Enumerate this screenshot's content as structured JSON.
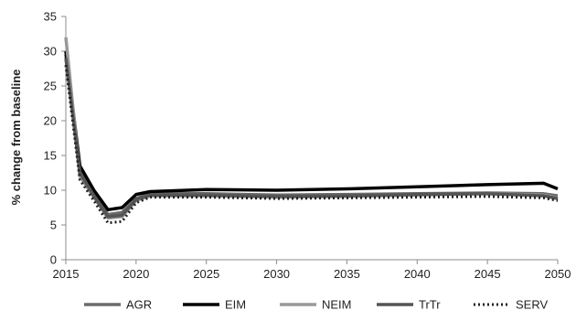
{
  "chart_data": {
    "type": "line",
    "title": "",
    "xlabel": "",
    "ylabel": "% change from baseline",
    "xlim": [
      2015,
      2050
    ],
    "ylim": [
      0,
      35
    ],
    "x_ticks": [
      2015,
      2020,
      2025,
      2030,
      2035,
      2040,
      2045,
      2050
    ],
    "x_tick_labels": [
      "2015",
      "2020",
      "2025",
      "2030",
      "2035",
      "2040",
      "2045",
      "2050"
    ],
    "y_ticks": [
      0,
      5,
      10,
      15,
      20,
      25,
      30,
      35
    ],
    "y_tick_labels": [
      "0",
      "5",
      "10",
      "15",
      "20",
      "25",
      "30",
      "35"
    ],
    "grid": false,
    "legend_position": "bottom",
    "series": [
      {
        "name": "AGR",
        "color": "#6b6b6b",
        "style": "solid",
        "points": [
          [
            2015,
            29.5
          ],
          [
            2016,
            13.0
          ],
          [
            2017,
            9.5
          ],
          [
            2018,
            6.5
          ],
          [
            2019,
            6.8
          ],
          [
            2020,
            8.8
          ],
          [
            2021,
            9.5
          ],
          [
            2025,
            9.5
          ],
          [
            2030,
            9.3
          ],
          [
            2035,
            9.4
          ],
          [
            2040,
            9.5
          ],
          [
            2045,
            9.6
          ],
          [
            2049,
            9.5
          ],
          [
            2050,
            9.2
          ]
        ]
      },
      {
        "name": "EIM",
        "color": "#000000",
        "style": "solid",
        "points": [
          [
            2015,
            30.0
          ],
          [
            2016,
            13.5
          ],
          [
            2017,
            10.0
          ],
          [
            2018,
            7.2
          ],
          [
            2019,
            7.5
          ],
          [
            2020,
            9.4
          ],
          [
            2021,
            9.8
          ],
          [
            2025,
            10.1
          ],
          [
            2030,
            10.0
          ],
          [
            2035,
            10.2
          ],
          [
            2040,
            10.5
          ],
          [
            2045,
            10.8
          ],
          [
            2049,
            11.0
          ],
          [
            2050,
            10.2
          ]
        ]
      },
      {
        "name": "NEIM",
        "color": "#999999",
        "style": "solid",
        "points": [
          [
            2015,
            32.0
          ],
          [
            2016,
            12.0
          ],
          [
            2017,
            9.0
          ],
          [
            2018,
            6.0
          ],
          [
            2019,
            6.2
          ],
          [
            2020,
            8.5
          ],
          [
            2021,
            9.2
          ],
          [
            2025,
            9.2
          ],
          [
            2030,
            9.0
          ],
          [
            2035,
            9.1
          ],
          [
            2040,
            9.3
          ],
          [
            2045,
            9.5
          ],
          [
            2049,
            9.3
          ],
          [
            2050,
            8.9
          ]
        ]
      },
      {
        "name": "TrTr",
        "color": "#555555",
        "style": "solid",
        "points": [
          [
            2015,
            29.0
          ],
          [
            2016,
            12.5
          ],
          [
            2017,
            9.2
          ],
          [
            2018,
            6.2
          ],
          [
            2019,
            6.4
          ],
          [
            2020,
            8.7
          ],
          [
            2021,
            9.3
          ],
          [
            2025,
            9.3
          ],
          [
            2030,
            9.1
          ],
          [
            2035,
            9.2
          ],
          [
            2040,
            9.4
          ],
          [
            2045,
            9.5
          ],
          [
            2049,
            9.2
          ],
          [
            2050,
            8.8
          ]
        ]
      },
      {
        "name": "SERV",
        "color": "#222222",
        "style": "dotted",
        "points": [
          [
            2015,
            28.0
          ],
          [
            2016,
            11.5
          ],
          [
            2017,
            8.5
          ],
          [
            2018,
            5.3
          ],
          [
            2019,
            5.5
          ],
          [
            2020,
            8.2
          ],
          [
            2021,
            9.0
          ],
          [
            2025,
            9.0
          ],
          [
            2030,
            8.8
          ],
          [
            2035,
            8.9
          ],
          [
            2040,
            9.0
          ],
          [
            2045,
            9.1
          ],
          [
            2049,
            8.9
          ],
          [
            2050,
            8.5
          ]
        ]
      }
    ]
  }
}
